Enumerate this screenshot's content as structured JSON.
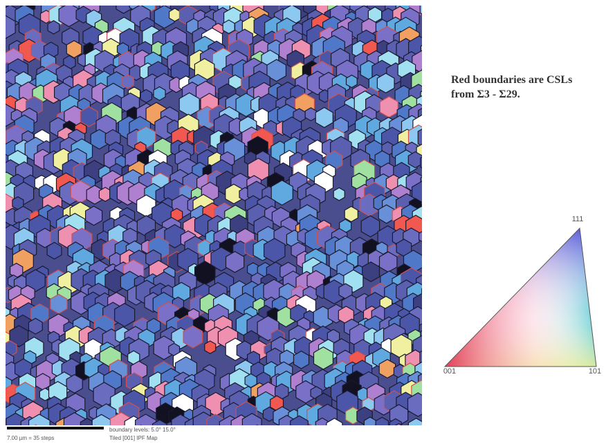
{
  "caption": {
    "lines": [
      "Red boundaries are CSLs",
      "from Σ3 - Σ29."
    ]
  },
  "legend": {
    "top": "111",
    "left": "001",
    "right": "101"
  },
  "map": {
    "scale_bar": "7.00 µm = 35 steps",
    "boundary_levels": "boundary levels: 5.0° 15.0°",
    "title": "Tiled [001] IPF Map"
  }
}
